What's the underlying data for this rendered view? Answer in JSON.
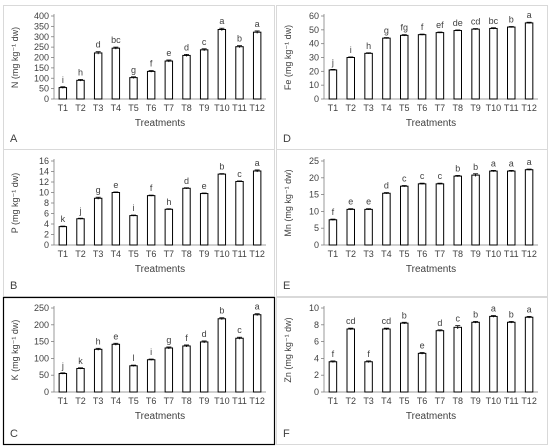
{
  "chart_data": [
    {
      "type": "bar",
      "panel": "A",
      "frame": "light",
      "ylabel": "N (mg kg⁻¹ dw)",
      "xlabel": "Treatments",
      "ylim": [
        0,
        400
      ],
      "yticks": [
        0,
        50,
        100,
        150,
        200,
        250,
        300,
        350,
        400
      ],
      "categories": [
        "T1",
        "T2",
        "T3",
        "T4",
        "T5",
        "T6",
        "T7",
        "T8",
        "T9",
        "T10",
        "T11",
        "T12"
      ],
      "values": [
        55,
        90,
        222,
        245,
        103,
        133,
        183,
        210,
        237,
        335,
        252,
        322
      ],
      "errors": [
        4,
        4,
        6,
        5,
        4,
        4,
        5,
        5,
        5,
        6,
        5,
        6
      ],
      "letters": [
        "i",
        "h",
        "d",
        "bc",
        "g",
        "f",
        "e",
        "d",
        "c",
        "a",
        "b",
        "a"
      ]
    },
    {
      "type": "bar",
      "panel": "B",
      "frame": "light",
      "ylabel": "P (mg kg⁻¹ dw)",
      "xlabel": "Treatments",
      "ylim": [
        0,
        16
      ],
      "yticks": [
        0,
        2,
        4,
        6,
        8,
        10,
        12,
        14,
        16
      ],
      "categories": [
        "T1",
        "T2",
        "T3",
        "T4",
        "T5",
        "T6",
        "T7",
        "T8",
        "T9",
        "T10",
        "T11",
        "T12"
      ],
      "values": [
        3.5,
        5.0,
        8.9,
        10.0,
        5.6,
        9.4,
        6.8,
        10.8,
        9.8,
        13.5,
        12.1,
        14.1
      ],
      "errors": [
        0.1,
        0.1,
        0.2,
        0.1,
        0.1,
        0.1,
        0.1,
        0.1,
        0.1,
        0.1,
        0.1,
        0.2
      ],
      "letters": [
        "k",
        "j",
        "g",
        "e",
        "i",
        "f",
        "h",
        "d",
        "e",
        "b",
        "c",
        "a"
      ]
    },
    {
      "type": "bar",
      "panel": "C",
      "frame": "bold",
      "ylabel": "K (mg kg⁻¹ dw)",
      "xlabel": "Treatments",
      "ylim": [
        0,
        250
      ],
      "yticks": [
        0,
        50,
        100,
        150,
        200,
        250
      ],
      "categories": [
        "T1",
        "T2",
        "T3",
        "T4",
        "T5",
        "T6",
        "T7",
        "T8",
        "T9",
        "T10",
        "T11",
        "T12"
      ],
      "values": [
        55,
        70,
        127,
        142,
        78,
        96,
        131,
        137,
        149,
        218,
        160,
        230
      ],
      "errors": [
        2,
        2,
        3,
        3,
        2,
        2,
        3,
        3,
        3,
        3,
        3,
        3
      ],
      "letters": [
        "j",
        "k",
        "h",
        "e",
        "l",
        "i",
        "g",
        "f",
        "d",
        "b",
        "c",
        "a"
      ]
    },
    {
      "type": "bar",
      "panel": "D",
      "frame": "light",
      "ylabel": "Fe (mg kg⁻¹ dw)",
      "xlabel": "Treatments",
      "ylim": [
        0,
        60
      ],
      "yticks": [
        0,
        10,
        20,
        30,
        40,
        50,
        60
      ],
      "categories": [
        "T1",
        "T2",
        "T3",
        "T4",
        "T5",
        "T6",
        "T7",
        "T8",
        "T9",
        "T10",
        "T11",
        "T12"
      ],
      "values": [
        21,
        30,
        33,
        44,
        46,
        46.5,
        48,
        49.5,
        50.5,
        51,
        52,
        55
      ],
      "errors": [
        0.4,
        0.4,
        0.4,
        0.4,
        0.5,
        0.4,
        0.4,
        0.4,
        0.4,
        0.5,
        0.4,
        0.5
      ],
      "letters": [
        "j",
        "i",
        "h",
        "g",
        "fg",
        "f",
        "ef",
        "de",
        "cd",
        "bc",
        "b",
        "a"
      ]
    },
    {
      "type": "bar",
      "panel": "E",
      "frame": "light",
      "ylabel": "Mn (mg kg⁻¹ dw)",
      "xlabel": "Treatments",
      "ylim": [
        0,
        25
      ],
      "yticks": [
        0,
        5,
        10,
        15,
        20,
        25
      ],
      "categories": [
        "T1",
        "T2",
        "T3",
        "T4",
        "T5",
        "T6",
        "T7",
        "T8",
        "T9",
        "T10",
        "T11",
        "T12"
      ],
      "values": [
        7.5,
        10.6,
        10.6,
        15.4,
        17.5,
        18.2,
        18.2,
        20.5,
        20.8,
        22.0,
        22.0,
        22.4
      ],
      "errors": [
        0.2,
        0.2,
        0.2,
        0.2,
        0.2,
        0.2,
        0.2,
        0.2,
        0.4,
        0.2,
        0.2,
        0.2
      ],
      "letters": [
        "f",
        "e",
        "e",
        "d",
        "c",
        "c",
        "c",
        "b",
        "b",
        "a",
        "a",
        "a"
      ]
    },
    {
      "type": "bar",
      "panel": "F",
      "frame": "light",
      "ylabel": "Zn (mg kg⁻¹ dw)",
      "xlabel": "Treatments",
      "ylim": [
        0,
        10
      ],
      "yticks": [
        0,
        2,
        4,
        6,
        8,
        10
      ],
      "categories": [
        "T1",
        "T2",
        "T3",
        "T4",
        "T5",
        "T6",
        "T7",
        "T8",
        "T9",
        "T10",
        "T11",
        "T12"
      ],
      "values": [
        3.6,
        7.5,
        3.6,
        7.5,
        8.2,
        4.6,
        7.3,
        7.7,
        8.3,
        9.0,
        8.3,
        8.9
      ],
      "errors": [
        0.1,
        0.1,
        0.1,
        0.1,
        0.1,
        0.1,
        0.1,
        0.2,
        0.1,
        0.1,
        0.1,
        0.1
      ],
      "letters": [
        "f",
        "cd",
        "f",
        "cd",
        "b",
        "e",
        "d",
        "c",
        "b",
        "a",
        "b",
        "a"
      ]
    }
  ]
}
